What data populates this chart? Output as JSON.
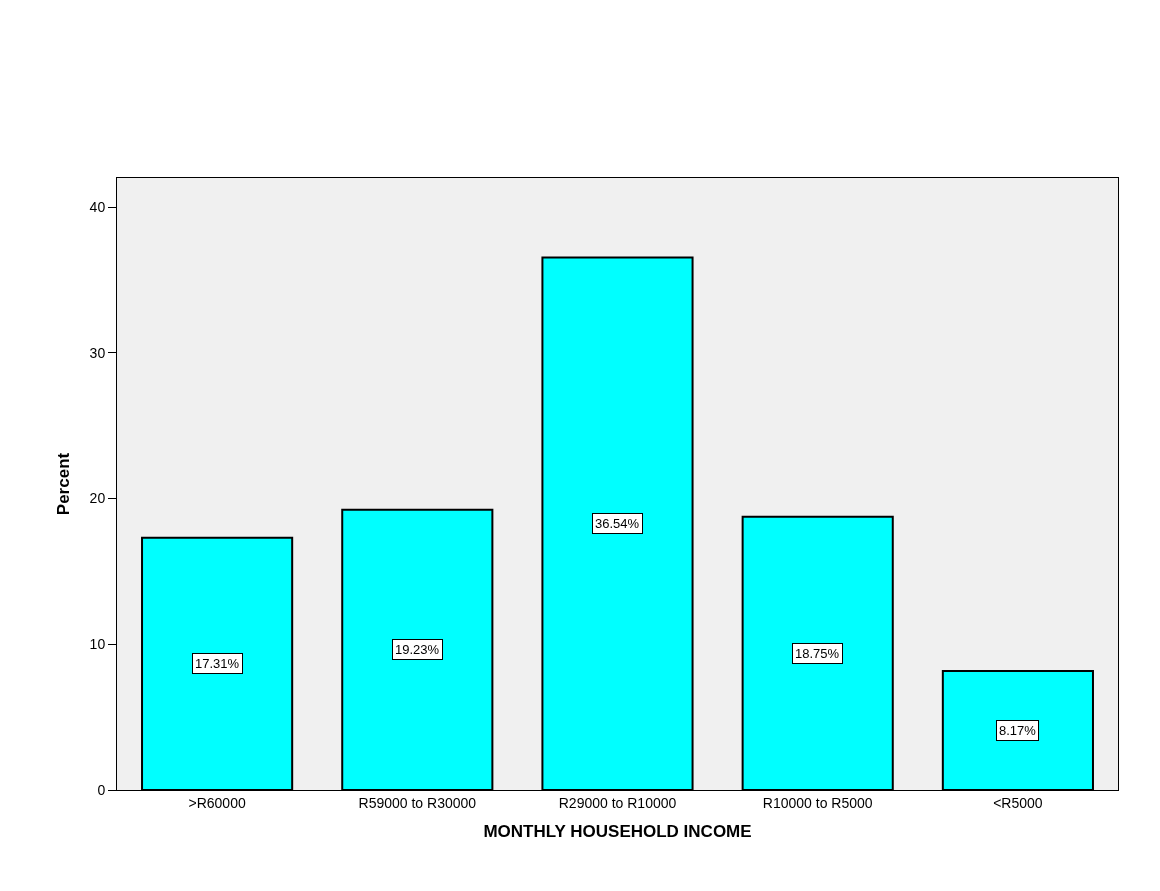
{
  "chart_data": {
    "type": "bar",
    "xlabel": "MONTHLY HOUSEHOLD INCOME",
    "ylabel": "Percent",
    "categories": [
      ">R60000",
      "R59000 to R30000",
      "R29000 to R10000",
      "R10000 to R5000",
      "<R5000"
    ],
    "values": [
      17.31,
      19.23,
      36.54,
      18.75,
      8.17
    ],
    "value_labels": [
      "17.31%",
      "19.23%",
      "36.54%",
      "18.75%",
      "8.17%"
    ],
    "color": "#00ffff",
    "ylim": [
      0,
      42
    ],
    "yticks": [
      0,
      10,
      20,
      30,
      40
    ]
  }
}
